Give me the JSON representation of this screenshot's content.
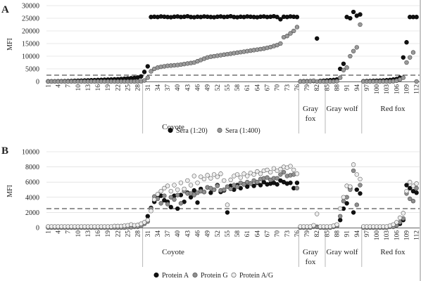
{
  "panels": [
    {
      "letter": "A",
      "ylabel": "MFI",
      "yticks": [
        0,
        5000,
        10000,
        15000,
        20000,
        25000,
        30000
      ],
      "ylim": [
        0,
        30000
      ],
      "threshold": 2500,
      "groups": [
        "Coyote",
        [
          "Gray",
          "fox"
        ],
        "Gray wolf",
        "Red fox"
      ],
      "legend": [
        {
          "label": "Sera (1:20)",
          "color": "#111111"
        },
        {
          "label": "Sera (1:400)",
          "color": "#9a9a9a"
        }
      ]
    },
    {
      "letter": "B",
      "ylabel": "MFI",
      "yticks": [
        0,
        2000,
        4000,
        6000,
        8000,
        10000
      ],
      "ylim": [
        0,
        10000
      ],
      "threshold": 2500,
      "groups": [
        "Coyote",
        [
          "Gray",
          "fox"
        ],
        "Gray wolf",
        "Red fox"
      ],
      "legend": [
        {
          "label": "Protein A",
          "color": "#111111"
        },
        {
          "label": "Protein G",
          "color": "#8f8f8f"
        },
        {
          "label": "Protein A/G",
          "color": "#ededed"
        }
      ]
    }
  ],
  "xticks": [
    1,
    4,
    7,
    10,
    13,
    16,
    19,
    22,
    25,
    28,
    31,
    34,
    37,
    40,
    43,
    46,
    49,
    52,
    55,
    58,
    61,
    64,
    67,
    70,
    73,
    76,
    79,
    82,
    85,
    88,
    91,
    94,
    97,
    100,
    103,
    106,
    109,
    112
  ],
  "chart_data": [
    {
      "type": "scatter",
      "x": [
        1,
        2,
        3,
        4,
        5,
        6,
        7,
        8,
        9,
        10,
        11,
        12,
        13,
        14,
        15,
        16,
        17,
        18,
        19,
        20,
        21,
        22,
        23,
        24,
        25,
        26,
        27,
        28,
        29,
        30,
        31,
        32,
        33,
        34,
        35,
        36,
        37,
        38,
        39,
        40,
        41,
        42,
        43,
        44,
        45,
        46,
        47,
        48,
        49,
        50,
        51,
        52,
        53,
        54,
        55,
        56,
        57,
        58,
        59,
        60,
        61,
        62,
        63,
        64,
        65,
        66,
        67,
        68,
        69,
        70,
        71,
        72,
        73,
        74,
        75,
        76,
        77,
        78,
        79,
        80,
        81,
        82,
        83,
        84,
        85,
        86,
        87,
        88,
        89,
        90,
        91,
        92,
        93,
        94,
        95,
        96,
        97,
        98,
        99,
        100,
        101,
        102,
        103,
        104,
        105,
        106,
        107,
        108,
        109,
        110,
        111,
        112
      ],
      "series": [
        {
          "name": "Sera (1:20)",
          "values": [
            50,
            50,
            60,
            80,
            100,
            120,
            150,
            200,
            250,
            300,
            350,
            400,
            450,
            500,
            550,
            600,
            650,
            700,
            750,
            800,
            850,
            900,
            1000,
            1100,
            1200,
            1300,
            1400,
            1600,
            2000,
            3800,
            6000,
            25500,
            25600,
            25500,
            25700,
            25600,
            25500,
            25400,
            25600,
            25700,
            25500,
            25600,
            25800,
            25500,
            25400,
            25600,
            25500,
            25700,
            25600,
            25500,
            25400,
            25600,
            25700,
            25500,
            25600,
            25800,
            25500,
            25400,
            25600,
            25500,
            25700,
            25600,
            25500,
            25400,
            25600,
            25700,
            25500,
            25600,
            25800,
            25500,
            24600,
            25600,
            25500,
            25700,
            25600,
            25500,
            50,
            80,
            100,
            150,
            200,
            17000,
            200,
            300,
            400,
            500,
            600,
            800,
            5000,
            7000,
            25500,
            25000,
            27500,
            26000,
            26500,
            100,
            150,
            200,
            250,
            300,
            350,
            400,
            500,
            600,
            800,
            1000,
            1500,
            9500,
            15500,
            25500,
            25500,
            25500
          ]
        },
        {
          "name": "Sera (1:400)",
          "values": [
            0,
            0,
            0,
            0,
            0,
            0,
            0,
            0,
            0,
            0,
            0,
            0,
            0,
            0,
            0,
            0,
            0,
            0,
            0,
            0,
            0,
            0,
            0,
            0,
            0,
            0,
            0,
            0,
            100,
            400,
            1500,
            4000,
            5000,
            5500,
            5800,
            6000,
            6200,
            6300,
            6400,
            6500,
            6700,
            6900,
            7100,
            7300,
            7500,
            8000,
            8500,
            9000,
            9500,
            9800,
            10000,
            10200,
            10400,
            10600,
            10800,
            11000,
            11200,
            11400,
            11600,
            11800,
            12000,
            12200,
            12400,
            12600,
            12800,
            13000,
            13300,
            13600,
            14000,
            14400,
            15000,
            17500,
            18000,
            19000,
            20000,
            21500,
            0,
            0,
            0,
            100,
            300,
            0,
            0,
            0,
            0,
            0,
            0,
            100,
            1500,
            4500,
            5500,
            10000,
            12000,
            13500,
            22500,
            0,
            0,
            0,
            0,
            0,
            0,
            0,
            0,
            0,
            100,
            300,
            800,
            1500,
            7500,
            9500,
            11500,
            0
          ]
        }
      ],
      "xlabel": "",
      "ylabel": "MFI",
      "ylim": [
        0,
        30000
      ],
      "threshold": 2500
    },
    {
      "type": "scatter",
      "x": [
        1,
        2,
        3,
        4,
        5,
        6,
        7,
        8,
        9,
        10,
        11,
        12,
        13,
        14,
        15,
        16,
        17,
        18,
        19,
        20,
        21,
        22,
        23,
        24,
        25,
        26,
        27,
        28,
        29,
        30,
        31,
        32,
        33,
        34,
        35,
        36,
        37,
        38,
        39,
        40,
        41,
        42,
        43,
        44,
        45,
        46,
        47,
        48,
        49,
        50,
        51,
        52,
        53,
        54,
        55,
        56,
        57,
        58,
        59,
        60,
        61,
        62,
        63,
        64,
        65,
        66,
        67,
        68,
        69,
        70,
        71,
        72,
        73,
        74,
        75,
        76,
        77,
        78,
        79,
        80,
        81,
        82,
        83,
        84,
        85,
        86,
        87,
        88,
        89,
        90,
        91,
        92,
        93,
        94,
        95,
        96,
        97,
        98,
        99,
        100,
        101,
        102,
        103,
        104,
        105,
        106,
        107,
        108,
        109,
        110,
        111,
        112
      ],
      "series": [
        {
          "name": "Protein A",
          "values": [
            100,
            100,
            100,
            100,
            100,
            100,
            100,
            100,
            100,
            100,
            100,
            100,
            100,
            100,
            100,
            100,
            100,
            100,
            100,
            100,
            100,
            150,
            150,
            200,
            200,
            150,
            200,
            250,
            300,
            600,
            1500,
            2600,
            3400,
            3900,
            4200,
            3600,
            3400,
            2700,
            4200,
            2500,
            4300,
            3400,
            4600,
            4000,
            4900,
            3300,
            5100,
            4700,
            5300,
            4600,
            5000,
            5600,
            4700,
            4900,
            2000,
            5500,
            5000,
            5600,
            5200,
            5700,
            5400,
            5800,
            5500,
            5900,
            5600,
            6000,
            5700,
            5800,
            5900,
            5700,
            6200,
            6000,
            5800,
            5900,
            5200,
            5900,
            100,
            100,
            100,
            100,
            200,
            100,
            100,
            100,
            100,
            100,
            150,
            200,
            1000,
            2500,
            3200,
            5200,
            2000,
            5000,
            4500,
            100,
            100,
            100,
            100,
            100,
            100,
            100,
            100,
            150,
            200,
            300,
            500,
            1000,
            5600,
            5200,
            4800,
            4600
          ]
        },
        {
          "name": "Protein G",
          "values": [
            0,
            0,
            0,
            0,
            0,
            0,
            0,
            0,
            0,
            0,
            0,
            0,
            0,
            0,
            0,
            0,
            0,
            0,
            0,
            0,
            0,
            0,
            0,
            0,
            50,
            50,
            100,
            100,
            200,
            500,
            800,
            2500,
            4100,
            3800,
            3200,
            4200,
            3100,
            4000,
            3700,
            4300,
            3200,
            4800,
            4500,
            4500,
            4300,
            4600,
            4800,
            4700,
            5300,
            5200,
            5000,
            5500,
            4900,
            5000,
            5400,
            5100,
            5600,
            5400,
            5900,
            5700,
            6000,
            5800,
            6200,
            6000,
            6400,
            6500,
            6600,
            6300,
            6500,
            6500,
            7000,
            7300,
            6800,
            6900,
            7000,
            5200,
            0,
            0,
            0,
            0,
            100,
            100,
            0,
            0,
            0,
            0,
            100,
            200,
            1500,
            3500,
            4000,
            5000,
            7500,
            3000,
            5600,
            0,
            0,
            0,
            0,
            0,
            0,
            0,
            0,
            100,
            100,
            300,
            700,
            1200,
            4500,
            3800,
            3500,
            5200
          ]
        },
        {
          "name": "Protein A/G",
          "values": [
            150,
            150,
            150,
            150,
            150,
            150,
            150,
            150,
            150,
            150,
            150,
            150,
            150,
            150,
            150,
            150,
            150,
            150,
            150,
            150,
            200,
            200,
            200,
            250,
            300,
            400,
            300,
            350,
            500,
            700,
            1000,
            2200,
            3700,
            4400,
            4800,
            5200,
            5500,
            4800,
            5600,
            5000,
            5900,
            5100,
            6200,
            5600,
            6800,
            5900,
            6700,
            6400,
            6900,
            6500,
            7000,
            6700,
            7100,
            6200,
            3000,
            6300,
            6800,
            7000,
            6600,
            7100,
            6800,
            7200,
            7000,
            7400,
            7100,
            7500,
            7600,
            7300,
            7800,
            7500,
            7700,
            8000,
            7900,
            8100,
            7600,
            7100,
            150,
            150,
            150,
            150,
            300,
            1800,
            150,
            150,
            150,
            150,
            250,
            400,
            2500,
            4000,
            5500,
            5400,
            8300,
            7000,
            6400,
            150,
            150,
            150,
            150,
            150,
            150,
            150,
            150,
            250,
            400,
            700,
            1300,
            1900,
            4800,
            6000,
            5500,
            5800
          ]
        }
      ],
      "xlabel": "",
      "ylabel": "MFI",
      "ylim": [
        0,
        10000
      ],
      "threshold": 2500
    }
  ]
}
